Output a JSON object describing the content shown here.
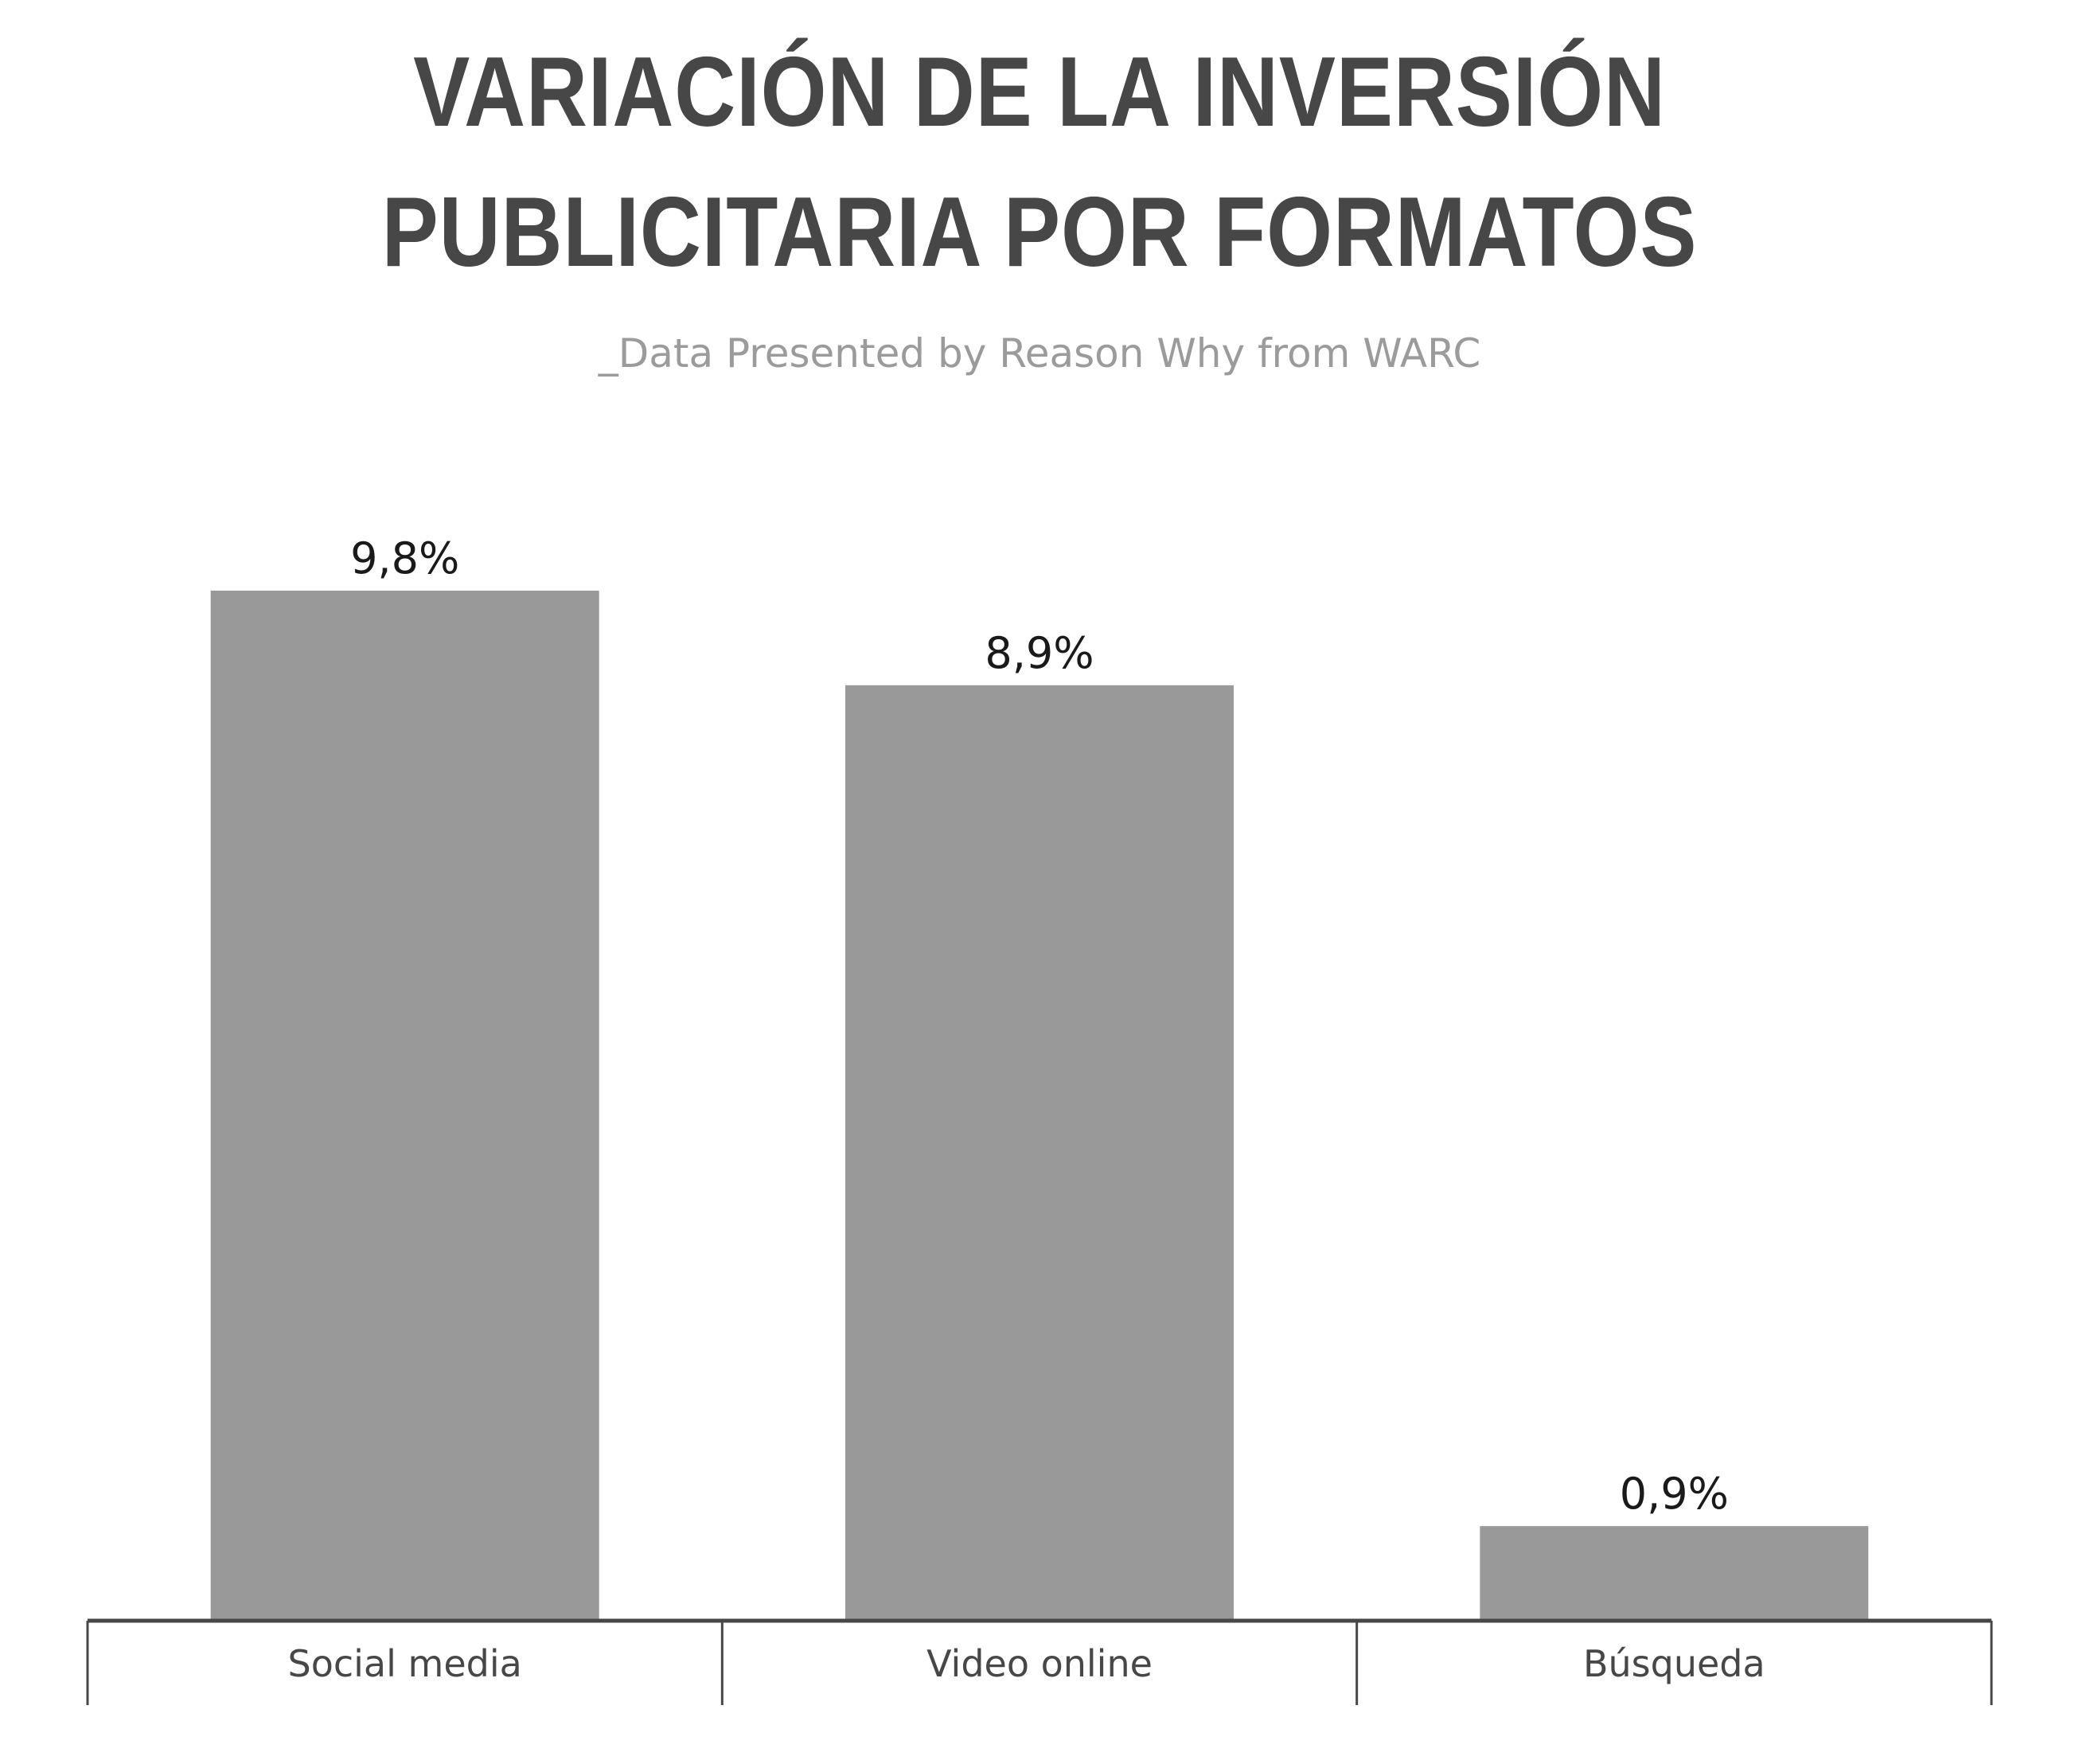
{
  "chart_data": {
    "type": "bar",
    "title": "VARIACIÓN DE LA INVERSIÓN PUBLICITARIA POR FORMATOS",
    "subtitle": "_Data Presented by Reason Why from WARC",
    "categories": [
      "Social media",
      "Video online",
      "Búsqueda"
    ],
    "values": [
      9.8,
      8.9,
      0.9
    ],
    "value_labels": [
      "9,8%",
      "8,9%",
      "0,9%"
    ],
    "unit": "%",
    "xlabel": "",
    "ylabel": "",
    "ylim": [
      0,
      9.8
    ],
    "grid": false,
    "legend": "none",
    "colors": {
      "bar": "#999999",
      "axis": "#474747",
      "title": "#474747",
      "subtitle": "#9b9b9b",
      "value_label": "#1a1a1a"
    }
  }
}
